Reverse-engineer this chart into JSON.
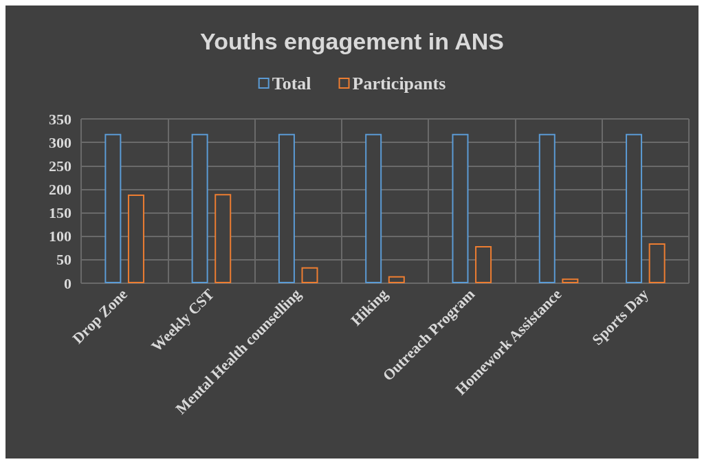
{
  "chart_data": {
    "type": "bar",
    "title": "Youths engagement in ANS",
    "categories": [
      "Drop Zone",
      "Weekly CST",
      "Mental Health counselling",
      "Hiking",
      "Outreach Program",
      "Homework Assistance",
      "Sports Day"
    ],
    "series": [
      {
        "name": "Total",
        "color": "#5b9bd5",
        "values": [
          318,
          318,
          318,
          318,
          318,
          318,
          318
        ]
      },
      {
        "name": "Participants",
        "color": "#ed7d31",
        "values": [
          189,
          190,
          34,
          15,
          79,
          10,
          85
        ]
      }
    ],
    "ylim": [
      0,
      350
    ],
    "yticks": [
      0,
      50,
      100,
      150,
      200,
      250,
      300,
      350
    ],
    "grid": true,
    "legend": "top"
  }
}
